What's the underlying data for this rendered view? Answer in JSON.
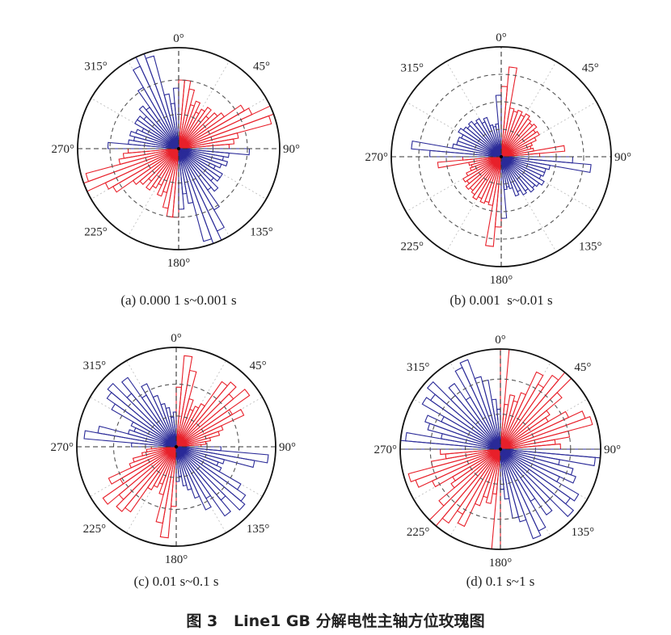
{
  "figure_title": "图 3   Line1 GB 分解电性主轴方位玫瑰图",
  "colors": {
    "red_quadrants": "#e8202a",
    "blue_quadrants": "#2a2a98",
    "outer_circle": "#111111",
    "grid": "#555555"
  },
  "chart_data": [
    {
      "type": "rose",
      "caption": "(a) 0.000 1 s~0.001 s",
      "angle_labels": [
        "0°",
        "45°",
        "90°",
        "135°",
        "180°",
        "225°",
        "270°",
        "315°"
      ],
      "bin_width_deg": 5,
      "axial_symmetric": true,
      "radial_range": [
        0,
        1
      ],
      "bin_start_deg": [
        0,
        5,
        10,
        15,
        20,
        25,
        30,
        35,
        40,
        45,
        50,
        55,
        60,
        65,
        70,
        75,
        80,
        85,
        90,
        95,
        100,
        105,
        110,
        115,
        120,
        125,
        130,
        135,
        140,
        145,
        150,
        155,
        160,
        165,
        170,
        175
      ],
      "values": [
        0.68,
        0.68,
        0.6,
        0.45,
        0.5,
        0.4,
        0.45,
        0.5,
        0.42,
        0.5,
        0.55,
        0.75,
        0.8,
        1.0,
        0.95,
        0.6,
        0.55,
        0.5,
        0.7,
        0.5,
        0.45,
        0.5,
        0.45,
        0.4,
        0.5,
        0.5,
        0.45,
        0.55,
        0.5,
        0.7,
        0.9,
        1.0,
        0.95,
        0.55,
        0.45,
        0.6
      ],
      "rings": [
        0.34,
        0.68
      ]
    },
    {
      "type": "rose",
      "caption": "(b) 0.001  s~0.01 s",
      "angle_labels": [
        "0°",
        "45°",
        "90°",
        "135°",
        "180°",
        "225°",
        "270°",
        "315°"
      ],
      "bin_width_deg": 5,
      "axial_symmetric": true,
      "radial_range": [
        0,
        1
      ],
      "bin_start_deg": [
        0,
        5,
        10,
        15,
        20,
        25,
        30,
        35,
        40,
        45,
        50,
        55,
        60,
        65,
        70,
        75,
        80,
        85,
        90,
        95,
        100,
        105,
        110,
        115,
        120,
        125,
        130,
        135,
        140,
        145,
        150,
        155,
        160,
        165,
        170,
        175
      ],
      "values": [
        0.64,
        0.82,
        0.45,
        0.43,
        0.45,
        0.42,
        0.45,
        0.42,
        0.4,
        0.42,
        0.38,
        0.4,
        0.35,
        0.3,
        0.28,
        0.3,
        0.58,
        0.35,
        0.65,
        0.82,
        0.45,
        0.42,
        0.42,
        0.4,
        0.45,
        0.42,
        0.4,
        0.42,
        0.38,
        0.4,
        0.35,
        0.38,
        0.3,
        0.28,
        0.3,
        0.56
      ],
      "rings": [
        0.25,
        0.5,
        0.75
      ]
    },
    {
      "type": "rose",
      "caption": "(c) 0.01 s~0.1 s",
      "angle_labels": [
        "0°",
        "45°",
        "90°",
        "135°",
        "180°",
        "225°",
        "270°",
        "315°"
      ],
      "bin_width_deg": 5,
      "axial_symmetric": true,
      "radial_range": [
        0,
        1
      ],
      "bin_start_deg": [
        0,
        5,
        10,
        15,
        20,
        25,
        30,
        35,
        40,
        45,
        50,
        55,
        60,
        65,
        70,
        75,
        80,
        85,
        90,
        95,
        100,
        105,
        110,
        115,
        120,
        125,
        130,
        135,
        140,
        145,
        150,
        155,
        160,
        165,
        170,
        175
      ],
      "values": [
        0.6,
        0.92,
        0.78,
        0.5,
        0.4,
        0.45,
        0.5,
        0.8,
        0.85,
        0.75,
        0.9,
        0.65,
        0.75,
        0.5,
        0.45,
        0.35,
        0.3,
        0.25,
        0.45,
        0.93,
        0.8,
        0.5,
        0.45,
        0.5,
        0.75,
        0.85,
        0.9,
        0.7,
        0.85,
        0.6,
        0.7,
        0.55,
        0.45,
        0.4,
        0.3,
        0.35
      ],
      "rings": [
        0.31,
        0.63
      ]
    },
    {
      "type": "rose",
      "caption": "(d) 0.1 s~1 s",
      "angle_labels": [
        "0°",
        "45°",
        "90°",
        "135°",
        "180°",
        "225°",
        "270°",
        "315°"
      ],
      "bin_width_deg": 5,
      "axial_symmetric": true,
      "radial_range": [
        0,
        1
      ],
      "bin_start_deg": [
        0,
        5,
        10,
        15,
        20,
        25,
        30,
        35,
        40,
        45,
        50,
        55,
        60,
        65,
        70,
        75,
        80,
        85,
        90,
        95,
        100,
        105,
        110,
        115,
        120,
        125,
        130,
        135,
        140,
        145,
        150,
        155,
        160,
        165,
        170,
        175
      ],
      "values": [
        1.0,
        0.45,
        0.55,
        0.5,
        0.6,
        0.85,
        0.75,
        0.9,
        1.0,
        0.8,
        0.6,
        0.55,
        0.75,
        0.9,
        0.95,
        0.7,
        0.55,
        0.6,
        1.0,
        0.95,
        0.6,
        0.75,
        0.8,
        0.65,
        0.9,
        0.85,
        0.95,
        0.7,
        0.8,
        0.6,
        0.9,
        0.95,
        0.75,
        0.7,
        0.5,
        0.4
      ],
      "rings": [
        0.35,
        0.7
      ]
    }
  ]
}
